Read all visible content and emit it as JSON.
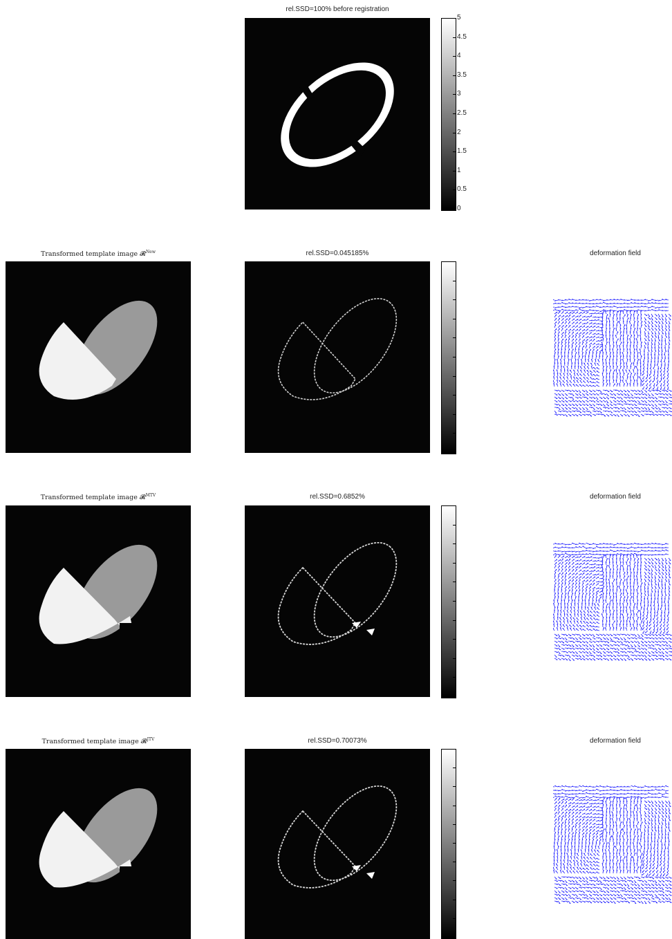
{
  "row1": {
    "residual_title": "rel.SSD=100% before registration",
    "colorbar_ticks": [
      "5",
      "4.5",
      "4",
      "3.5",
      "3",
      "2.5",
      "2",
      "1.5",
      "1",
      "0.5",
      "0"
    ]
  },
  "rows": [
    {
      "template_title": "Transformed template image 𝓡",
      "template_sup": "New",
      "residual_title": "rel.SSD=0.045185%",
      "field_title": "deformation field"
    },
    {
      "template_title": "Transformed template image 𝓡",
      "template_sup": "MTV",
      "residual_title": "rel.SSD=0.6852%",
      "field_title": "deformation field"
    },
    {
      "template_title": "Transformed template image 𝓡",
      "template_sup": "JTV",
      "residual_title": "rel.SSD=0.70073%",
      "field_title": "deformation field"
    }
  ],
  "colors": {
    "background": "#050505",
    "arrow": "#1a1aff",
    "light_region": "#f2f2f2",
    "gray_region": "#9a9a9a"
  }
}
